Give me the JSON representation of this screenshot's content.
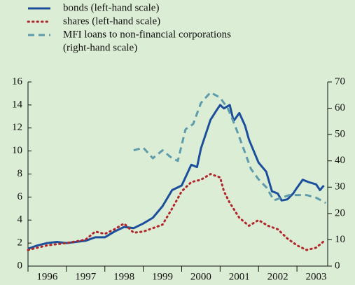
{
  "chart_data": {
    "type": "line",
    "xlim": [
      1996,
      2003.8
    ],
    "xticks": [
      1996,
      1997,
      1998,
      1999,
      2000,
      2001,
      2002,
      2003
    ],
    "ylim": [
      0,
      16
    ],
    "yticks": [
      0,
      2,
      4,
      6,
      8,
      10,
      12,
      14,
      16
    ],
    "y2lim": [
      0,
      70
    ],
    "y2ticks": [
      0,
      10,
      20,
      30,
      40,
      50,
      60,
      70
    ],
    "series": [
      {
        "name": [
          "bonds (left-hand scale)"
        ],
        "color": "#1b4f9c",
        "style": "solid",
        "x": [
          1996.0,
          1996.25,
          1996.5,
          1996.75,
          1997.0,
          1997.25,
          1997.5,
          1997.75,
          1998.0,
          1998.25,
          1998.5,
          1998.75,
          1999.0,
          1999.25,
          1999.5,
          1999.75,
          2000.0,
          2000.25,
          2000.4,
          2000.5,
          2000.75,
          2000.9,
          2001.0,
          2001.1,
          2001.25,
          2001.35,
          2001.5,
          2001.65,
          2001.75,
          2002.0,
          2002.2,
          2002.35,
          2002.5,
          2002.6,
          2002.75,
          2002.9,
          2003.0,
          2003.15,
          2003.3,
          2003.5,
          2003.6,
          2003.7
        ],
        "values": [
          1.5,
          1.8,
          2.0,
          2.1,
          2.0,
          2.1,
          2.2,
          2.5,
          2.5,
          3.0,
          3.4,
          3.3,
          3.7,
          4.2,
          5.2,
          6.6,
          7.0,
          8.8,
          8.6,
          10.2,
          12.7,
          13.5,
          14.0,
          13.7,
          14.0,
          12.6,
          13.3,
          12.2,
          11.0,
          9.0,
          8.2,
          6.5,
          6.3,
          5.7,
          5.8,
          6.3,
          6.8,
          7.5,
          7.3,
          7.1,
          6.6,
          7.0
        ]
      },
      {
        "name": [
          "shares (left-hand scale)"
        ],
        "color": "#b0262a",
        "style": "dotted",
        "x": [
          1996.0,
          1996.5,
          1997.0,
          1997.5,
          1997.75,
          1998.0,
          1998.25,
          1998.5,
          1998.75,
          1999.0,
          1999.25,
          1999.5,
          1999.75,
          2000.0,
          2000.25,
          2000.5,
          2000.75,
          2001.0,
          2001.1,
          2001.25,
          2001.5,
          2001.75,
          2002.0,
          2002.25,
          2002.5,
          2002.75,
          2003.0,
          2003.25,
          2003.5,
          2003.75
        ],
        "values": [
          1.4,
          1.8,
          2.0,
          2.3,
          3.0,
          2.8,
          3.2,
          3.7,
          2.9,
          3.0,
          3.3,
          3.6,
          5.0,
          6.5,
          7.3,
          7.5,
          8.0,
          7.7,
          6.5,
          5.5,
          4.2,
          3.5,
          4.0,
          3.5,
          3.2,
          2.4,
          1.8,
          1.4,
          1.6,
          2.3
        ]
      },
      {
        "name": [
          "MFI loans to non-financial corporations",
          "(right-hand scale)"
        ],
        "color": "#5e9cab",
        "style": "dashed",
        "axis": "y2",
        "x": [
          1998.75,
          1999.0,
          1999.25,
          1999.5,
          1999.75,
          1999.9,
          2000.1,
          2000.3,
          2000.5,
          2000.75,
          2001.0,
          2001.2,
          2001.4,
          2001.6,
          2001.8,
          2002.0,
          2002.2,
          2002.4,
          2002.6,
          2002.8,
          2003.0,
          2003.25,
          2003.5,
          2003.75
        ],
        "values": [
          44,
          45,
          41,
          44,
          41,
          40,
          52,
          54,
          62,
          66,
          64,
          60,
          53,
          45,
          37,
          33,
          30,
          25,
          26,
          27,
          27,
          27,
          26,
          24
        ]
      }
    ]
  }
}
